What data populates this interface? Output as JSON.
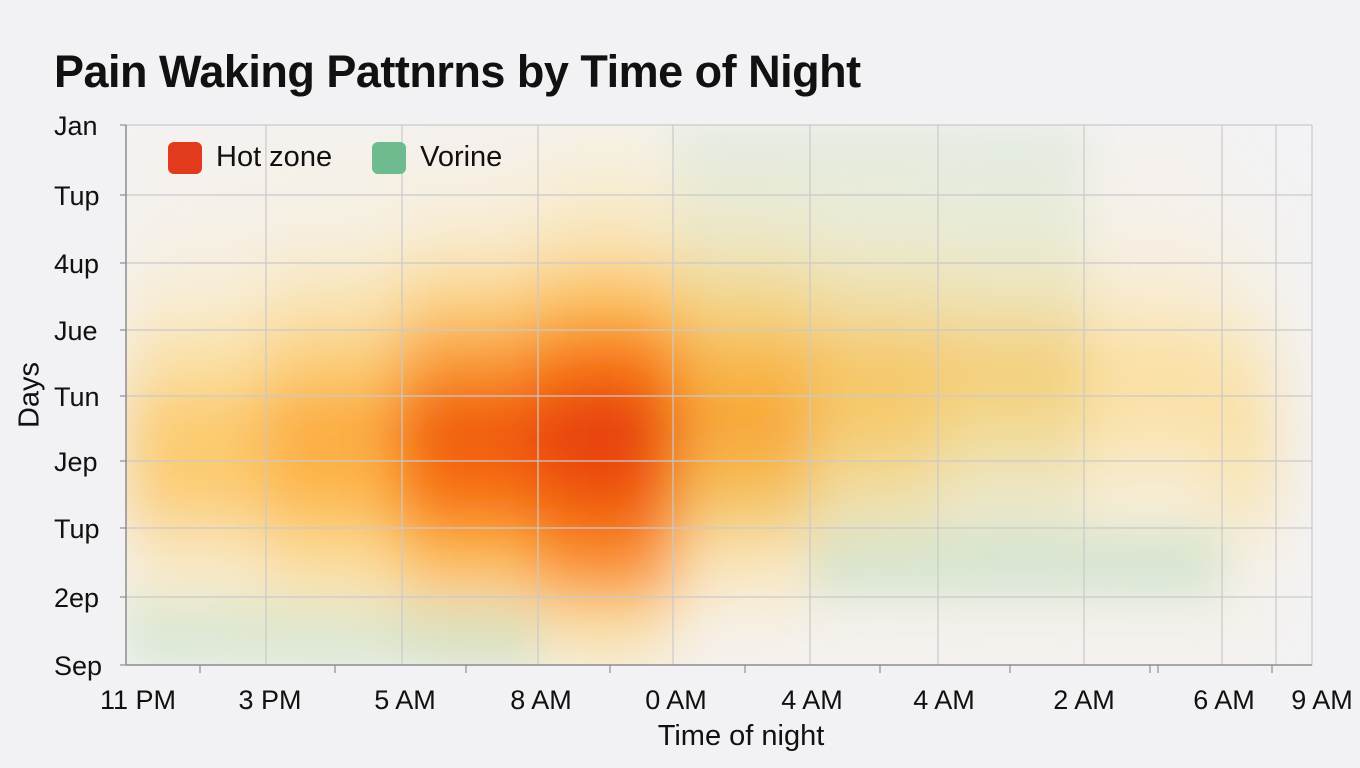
{
  "chart_data": {
    "type": "heatmap",
    "title": "Pain Waking Pattnrns by Time of Night",
    "xlabel": "Time of night",
    "ylabel": "Days",
    "x_ticks": [
      "11 PM",
      "3 PM",
      "5 AM",
      "8 AM",
      "0 AM",
      "4 AM",
      "4 AM",
      "2 AM",
      "6 AM",
      "9 AM"
    ],
    "y_ticks": [
      "Jan",
      "Tup",
      "4up",
      "Jue",
      "Tun",
      "Jep",
      "Tup",
      "2ep",
      "Sep"
    ],
    "legend": [
      {
        "label": "Hot zone",
        "color": "#e23a1c"
      },
      {
        "label": "Vorine",
        "color": "#6dbb8e"
      }
    ],
    "grid": true,
    "legend_position": "top-left",
    "intensity_rows": [
      "Jan",
      "Tup",
      "4up",
      "Jue",
      "Tun",
      "Jep",
      "Tup",
      "2ep"
    ],
    "intensity_cols": [
      "11 PM",
      "3 PM",
      "5 AM",
      "8 AM",
      "0 AM",
      "4 AM",
      "4 AM",
      "2 AM",
      "6 AM"
    ],
    "intensity": [
      [
        0.04,
        0.08,
        0.1,
        0.18,
        0.1,
        0.08,
        0.06,
        0.04,
        0.02
      ],
      [
        0.1,
        0.15,
        0.22,
        0.3,
        0.22,
        0.18,
        0.15,
        0.1,
        0.06
      ],
      [
        0.22,
        0.32,
        0.45,
        0.55,
        0.42,
        0.34,
        0.3,
        0.24,
        0.16
      ],
      [
        0.38,
        0.5,
        0.7,
        0.8,
        0.6,
        0.52,
        0.48,
        0.38,
        0.32
      ],
      [
        0.52,
        0.65,
        0.88,
        0.97,
        0.66,
        0.5,
        0.4,
        0.34,
        0.38
      ],
      [
        0.5,
        0.6,
        0.8,
        0.88,
        0.55,
        0.36,
        0.24,
        0.22,
        0.34
      ],
      [
        0.28,
        0.4,
        0.58,
        0.72,
        0.32,
        0.12,
        0.1,
        0.1,
        0.14
      ],
      [
        0.12,
        0.15,
        0.22,
        0.35,
        0.1,
        0.05,
        0.06,
        0.05,
        0.05
      ]
    ],
    "cool_regions": [
      {
        "x": [
          "11 PM",
          "5 AM"
        ],
        "y": [
          "2ep",
          "Sep"
        ],
        "strength": 0.35
      },
      {
        "x": [
          "5 AM",
          "8 AM"
        ],
        "y": [
          "2ep",
          "Sep"
        ],
        "strength": 0.45
      },
      {
        "x": [
          "4 AM",
          "6 AM"
        ],
        "y": [
          "Tup",
          "2ep"
        ],
        "strength": 0.45
      },
      {
        "x": [
          "0 AM",
          "2 AM"
        ],
        "y": [
          "Jan",
          "Tup"
        ],
        "strength": 0.22
      }
    ]
  }
}
